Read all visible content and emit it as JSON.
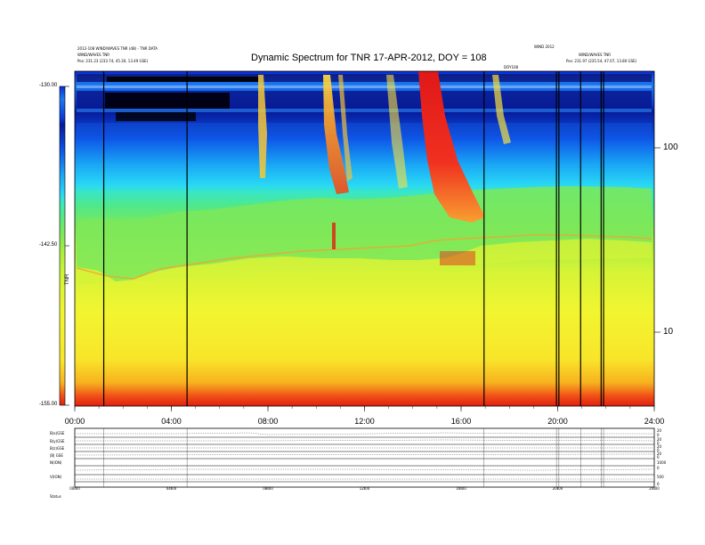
{
  "chart_data": {
    "type": "heatmap",
    "title": "Dynamic Spectrum for TNR 17-APR-2012, DOY = 108",
    "header_left": [
      "2012-108 WIND/WAVES TNR (dB) - TNR DATA",
      "WIND/WAVES TNR",
      "Pos: 231.23 (233.74, 45.30, 13.49 GSE)"
    ],
    "header_right": [
      "WIND 2012",
      "WIND/WAVES TNR",
      "Pos: 231.97 (235.54, 47.07, 13.80 GSE)",
      "DOY108"
    ],
    "x_tick_labels": [
      "00:00",
      "04:00",
      "08:00",
      "12:00",
      "16:00",
      "20:00",
      "24:00"
    ],
    "x_tick_hours": [
      0,
      4,
      8,
      12,
      16,
      20,
      24
    ],
    "xlim": [
      0,
      24
    ],
    "y_scale": "log",
    "y_tick_labels": [
      "10",
      "100"
    ],
    "y_tick_values": [
      10,
      100
    ],
    "ylim": [
      4,
      250
    ],
    "colorbar_tick_labels": [
      "-130.00",
      "-142.50",
      "-155.00"
    ],
    "colorbar_tick_values": [
      -130.0,
      -142.5,
      -155.0
    ],
    "colorbar_range": [
      -155.0,
      -130.0
    ],
    "colorbar_label": "TNR",
    "colormap": [
      "#000080",
      "#0000ff",
      "#00ffff",
      "#00ff00",
      "#ffff00",
      "#ff0000",
      "#800000"
    ],
    "vertical_marker_hours": [
      1.2,
      4.65,
      16.95,
      19.95,
      20.05,
      20.95,
      21.8,
      21.9
    ],
    "radio_bursts": [
      {
        "start_hour": 7.5,
        "end_hour": 7.9,
        "drift": "short"
      },
      {
        "start_hour": 10.3,
        "end_hour": 11.2,
        "drift": "medium"
      },
      {
        "start_hour": 14.3,
        "end_hour": 16.5,
        "drift": "strong"
      },
      {
        "start_hour": 17.3,
        "end_hour": 17.7,
        "drift": "short"
      }
    ],
    "lower_panel_row_labels": [
      "B(x)GSE",
      "B(y)GSE",
      "B(z)GSE",
      "|B| GSE",
      "N(ION)",
      "V(ION)",
      "Status"
    ],
    "lower_panel_right_labels": [
      "20",
      "0",
      "20",
      "0",
      "20",
      "0",
      "20",
      "0",
      "1000",
      "0",
      "500",
      "0"
    ]
  }
}
